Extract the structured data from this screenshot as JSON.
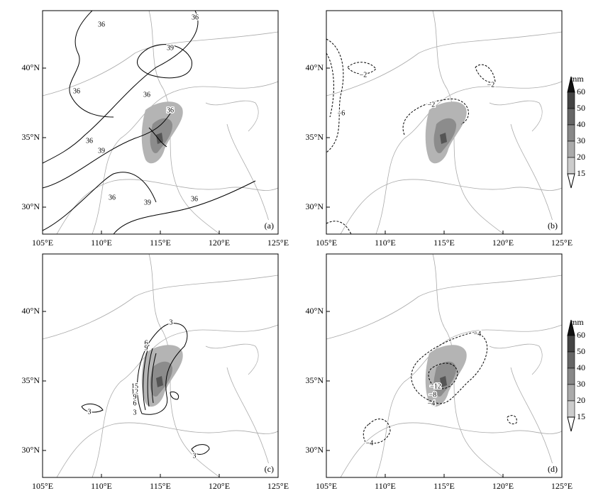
{
  "axes": {
    "x_labels": [
      "105°E",
      "110°E",
      "115°E",
      "120°E",
      "125°E"
    ],
    "y_labels": [
      "40°N",
      "35°N",
      "30°N"
    ]
  },
  "panels": [
    {
      "label": "(a)",
      "contour_labels": [
        "36",
        "36",
        "39",
        "36",
        "36",
        "36",
        "36",
        "39",
        "36",
        "39",
        "36"
      ]
    },
    {
      "label": "(b)",
      "contour_labels": [
        "−2",
        "−2",
        "−2",
        "−6"
      ]
    },
    {
      "label": "(c)",
      "contour_labels": [
        "3",
        "6",
        "9",
        "15",
        "12",
        "9",
        "6",
        "3",
        "3",
        "3"
      ]
    },
    {
      "label": "(d)",
      "contour_labels": [
        "−4",
        "−12",
        "−8",
        "−4",
        "−4"
      ]
    }
  ],
  "colorbars": [
    {
      "unit": "mm",
      "labels": [
        "60",
        "50",
        "40",
        "30",
        "20",
        "15"
      ]
    },
    {
      "unit": "mm",
      "labels": [
        "60",
        "50",
        "40",
        "30",
        "20",
        "15"
      ]
    }
  ]
}
